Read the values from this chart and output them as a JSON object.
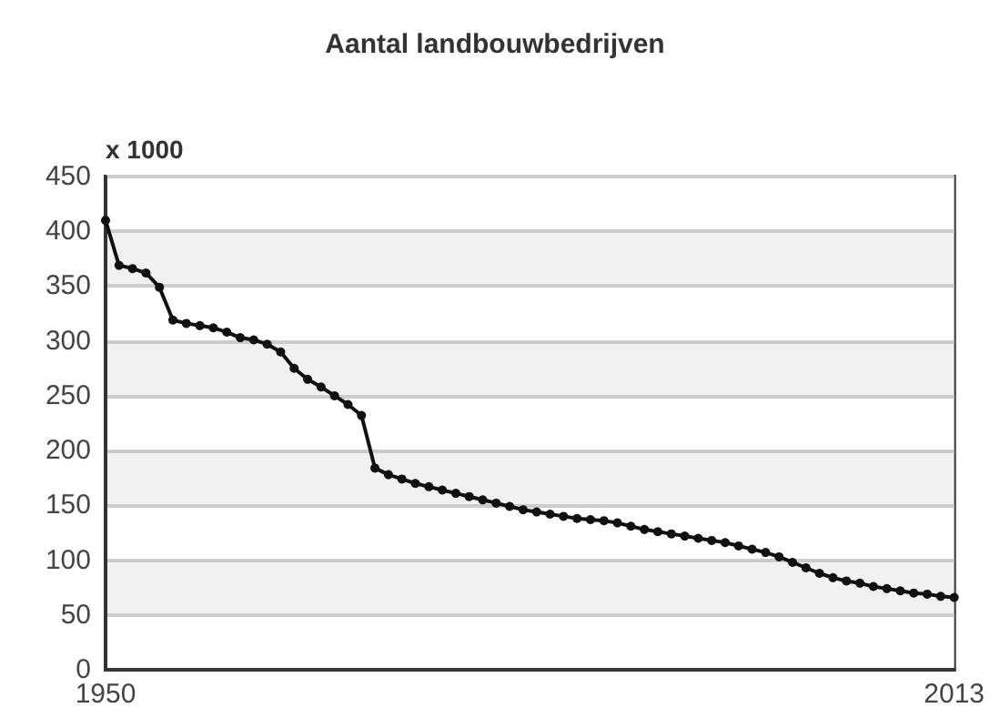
{
  "chart_data": {
    "type": "line",
    "title": "Aantal landbouwbedrijven",
    "ylabel": "x 1000",
    "x": [
      1950,
      1951,
      1952,
      1953,
      1954,
      1955,
      1956,
      1957,
      1958,
      1959,
      1960,
      1961,
      1962,
      1963,
      1964,
      1965,
      1966,
      1967,
      1968,
      1969,
      1970,
      1971,
      1972,
      1973,
      1974,
      1975,
      1976,
      1977,
      1978,
      1979,
      1980,
      1981,
      1982,
      1983,
      1984,
      1985,
      1986,
      1987,
      1988,
      1989,
      1990,
      1991,
      1992,
      1993,
      1994,
      1995,
      1996,
      1997,
      1998,
      1999,
      2000,
      2001,
      2002,
      2003,
      2004,
      2005,
      2006,
      2007,
      2008,
      2009,
      2010,
      2011,
      2012,
      2013
    ],
    "series": [
      {
        "color": "#111111",
        "values": [
          410,
          369,
          366,
          362,
          349,
          319,
          316,
          314,
          312,
          308,
          303,
          301,
          297,
          290,
          275,
          265,
          258,
          250,
          242,
          232,
          184,
          178,
          174,
          170,
          167,
          164,
          161,
          158,
          155,
          152,
          149,
          146,
          144,
          142,
          140,
          138,
          137,
          136,
          134,
          131,
          128,
          126,
          124,
          122,
          120,
          118,
          116,
          113,
          110,
          107,
          103,
          98,
          93,
          88,
          84,
          81,
          79,
          76,
          74,
          72,
          70,
          69,
          67,
          66
        ]
      }
    ],
    "xlim": [
      1950,
      2013
    ],
    "xticks": [
      1950,
      2013
    ],
    "ylim": [
      0,
      450
    ],
    "yticks": [
      0,
      50,
      100,
      150,
      200,
      250,
      300,
      350,
      400,
      450
    ],
    "grid": "y",
    "marker": "circle",
    "line_style": "solid"
  }
}
